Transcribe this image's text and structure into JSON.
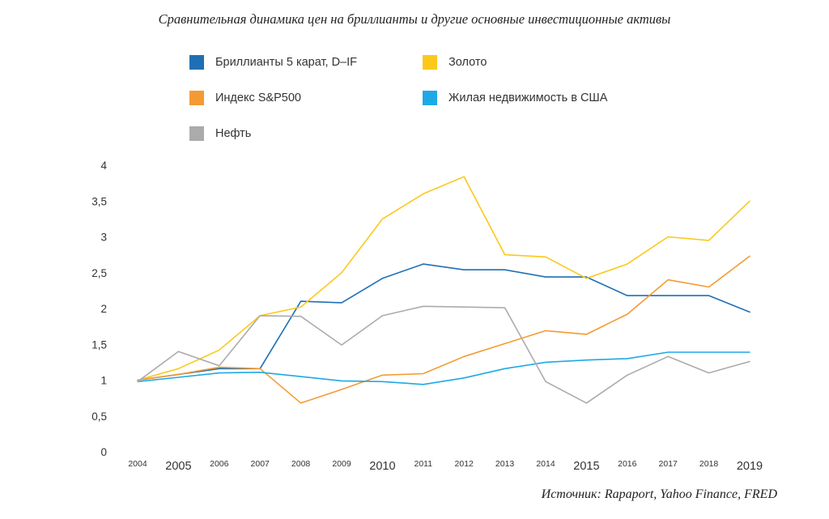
{
  "title": "Сравнительная динамика цен на бриллианты и другие основные инвестиционные активы",
  "source": "Источник: Rapaport, Yahoo Finance, FRED",
  "legend": [
    {
      "label": "Бриллианты 5 карат, D–IF",
      "color": "#1f6fb5"
    },
    {
      "label": "Золото",
      "color": "#fcc81a"
    },
    {
      "label": "Индекс S&P500",
      "color": "#f59a32"
    },
    {
      "label": "Жилая недвижимость в США",
      "color": "#1ea9e6"
    },
    {
      "label": "Нефть",
      "color": "#ababab"
    }
  ],
  "chart_data": {
    "type": "line",
    "title": "Сравнительная динамика цен на бриллианты и другие основные инвестиционные активы",
    "xlabel": "",
    "ylabel": "",
    "x": [
      "2004",
      "2005",
      "2006",
      "2007",
      "2008",
      "2009",
      "2010",
      "2011",
      "2012",
      "2013",
      "2014",
      "2015",
      "2016",
      "2017",
      "2018",
      "2019"
    ],
    "x_large_labels": [
      "2005",
      "2010",
      "2015",
      "2019"
    ],
    "ylim": [
      0,
      4
    ],
    "y_ticks": [
      "0",
      "0,5",
      "1",
      "1,5",
      "2",
      "2,5",
      "3",
      "3,5",
      "4"
    ],
    "grid": false,
    "series": [
      {
        "name": "Бриллианты 5 карат, D–IF",
        "color": "#1f6fb5",
        "values": [
          1.0,
          1.08,
          1.16,
          1.16,
          2.1,
          2.08,
          2.42,
          2.62,
          2.54,
          2.54,
          2.44,
          2.44,
          2.18,
          2.18,
          2.18,
          1.95
        ]
      },
      {
        "name": "Золото",
        "color": "#fcc81a",
        "values": [
          1.0,
          1.16,
          1.42,
          1.9,
          2.02,
          2.5,
          3.25,
          3.6,
          3.84,
          2.75,
          2.72,
          2.42,
          2.62,
          3.0,
          2.95,
          3.5
        ]
      },
      {
        "name": "Индекс S&P500",
        "color": "#f59a32",
        "values": [
          1.0,
          1.08,
          1.18,
          1.16,
          0.68,
          0.87,
          1.07,
          1.09,
          1.33,
          1.51,
          1.69,
          1.64,
          1.92,
          2.4,
          2.3,
          2.73
        ]
      },
      {
        "name": "Жилая недвижимость в США",
        "color": "#1ea9e6",
        "values": [
          0.98,
          1.04,
          1.1,
          1.11,
          1.05,
          0.99,
          0.98,
          0.94,
          1.03,
          1.16,
          1.25,
          1.28,
          1.3,
          1.39,
          1.39,
          1.39
        ]
      },
      {
        "name": "Нефть",
        "color": "#ababab",
        "values": [
          0.98,
          1.4,
          1.2,
          1.9,
          1.89,
          1.49,
          1.9,
          2.03,
          2.02,
          2.01,
          0.98,
          0.68,
          1.07,
          1.33,
          1.1,
          1.26
        ]
      }
    ]
  }
}
